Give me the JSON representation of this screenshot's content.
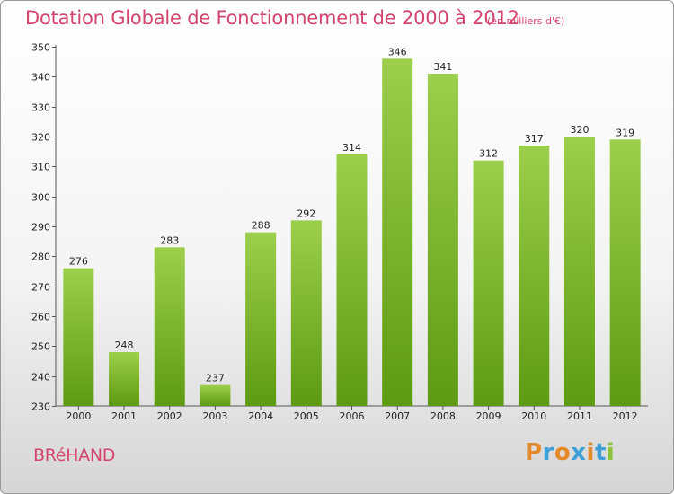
{
  "header": {
    "title": "Dotation Globale de Fonctionnement de 2000 à 2012",
    "subtitle": "(en milliers d'€)"
  },
  "footer": {
    "commune": "BRéHAND",
    "logo_text": "Proxiti"
  },
  "colors": {
    "bar_top": "#9ccf4c",
    "bar_bottom": "#5e9a12",
    "title": "#d4456d",
    "logo_letters": [
      "#e48a2a",
      "#3fa0d8",
      "#e48a2a",
      "#3fa0d8",
      "#e48a2a",
      "#3fa0d8",
      "#8cc43a"
    ]
  },
  "chart_data": {
    "type": "bar",
    "title": "Dotation Globale de Fonctionnement de 2000 à 2012",
    "subtitle": "(en milliers d'€)",
    "xlabel": "",
    "ylabel": "",
    "categories": [
      "2000",
      "2001",
      "2002",
      "2003",
      "2004",
      "2005",
      "2006",
      "2007",
      "2008",
      "2009",
      "2010",
      "2011",
      "2012"
    ],
    "values": [
      276,
      248,
      283,
      237,
      288,
      292,
      314,
      346,
      341,
      312,
      317,
      320,
      319
    ],
    "ylim": [
      230,
      350
    ],
    "yticks": [
      230,
      240,
      250,
      260,
      270,
      280,
      290,
      300,
      310,
      320,
      330,
      340,
      350
    ],
    "grid": false,
    "data_labels": true
  }
}
